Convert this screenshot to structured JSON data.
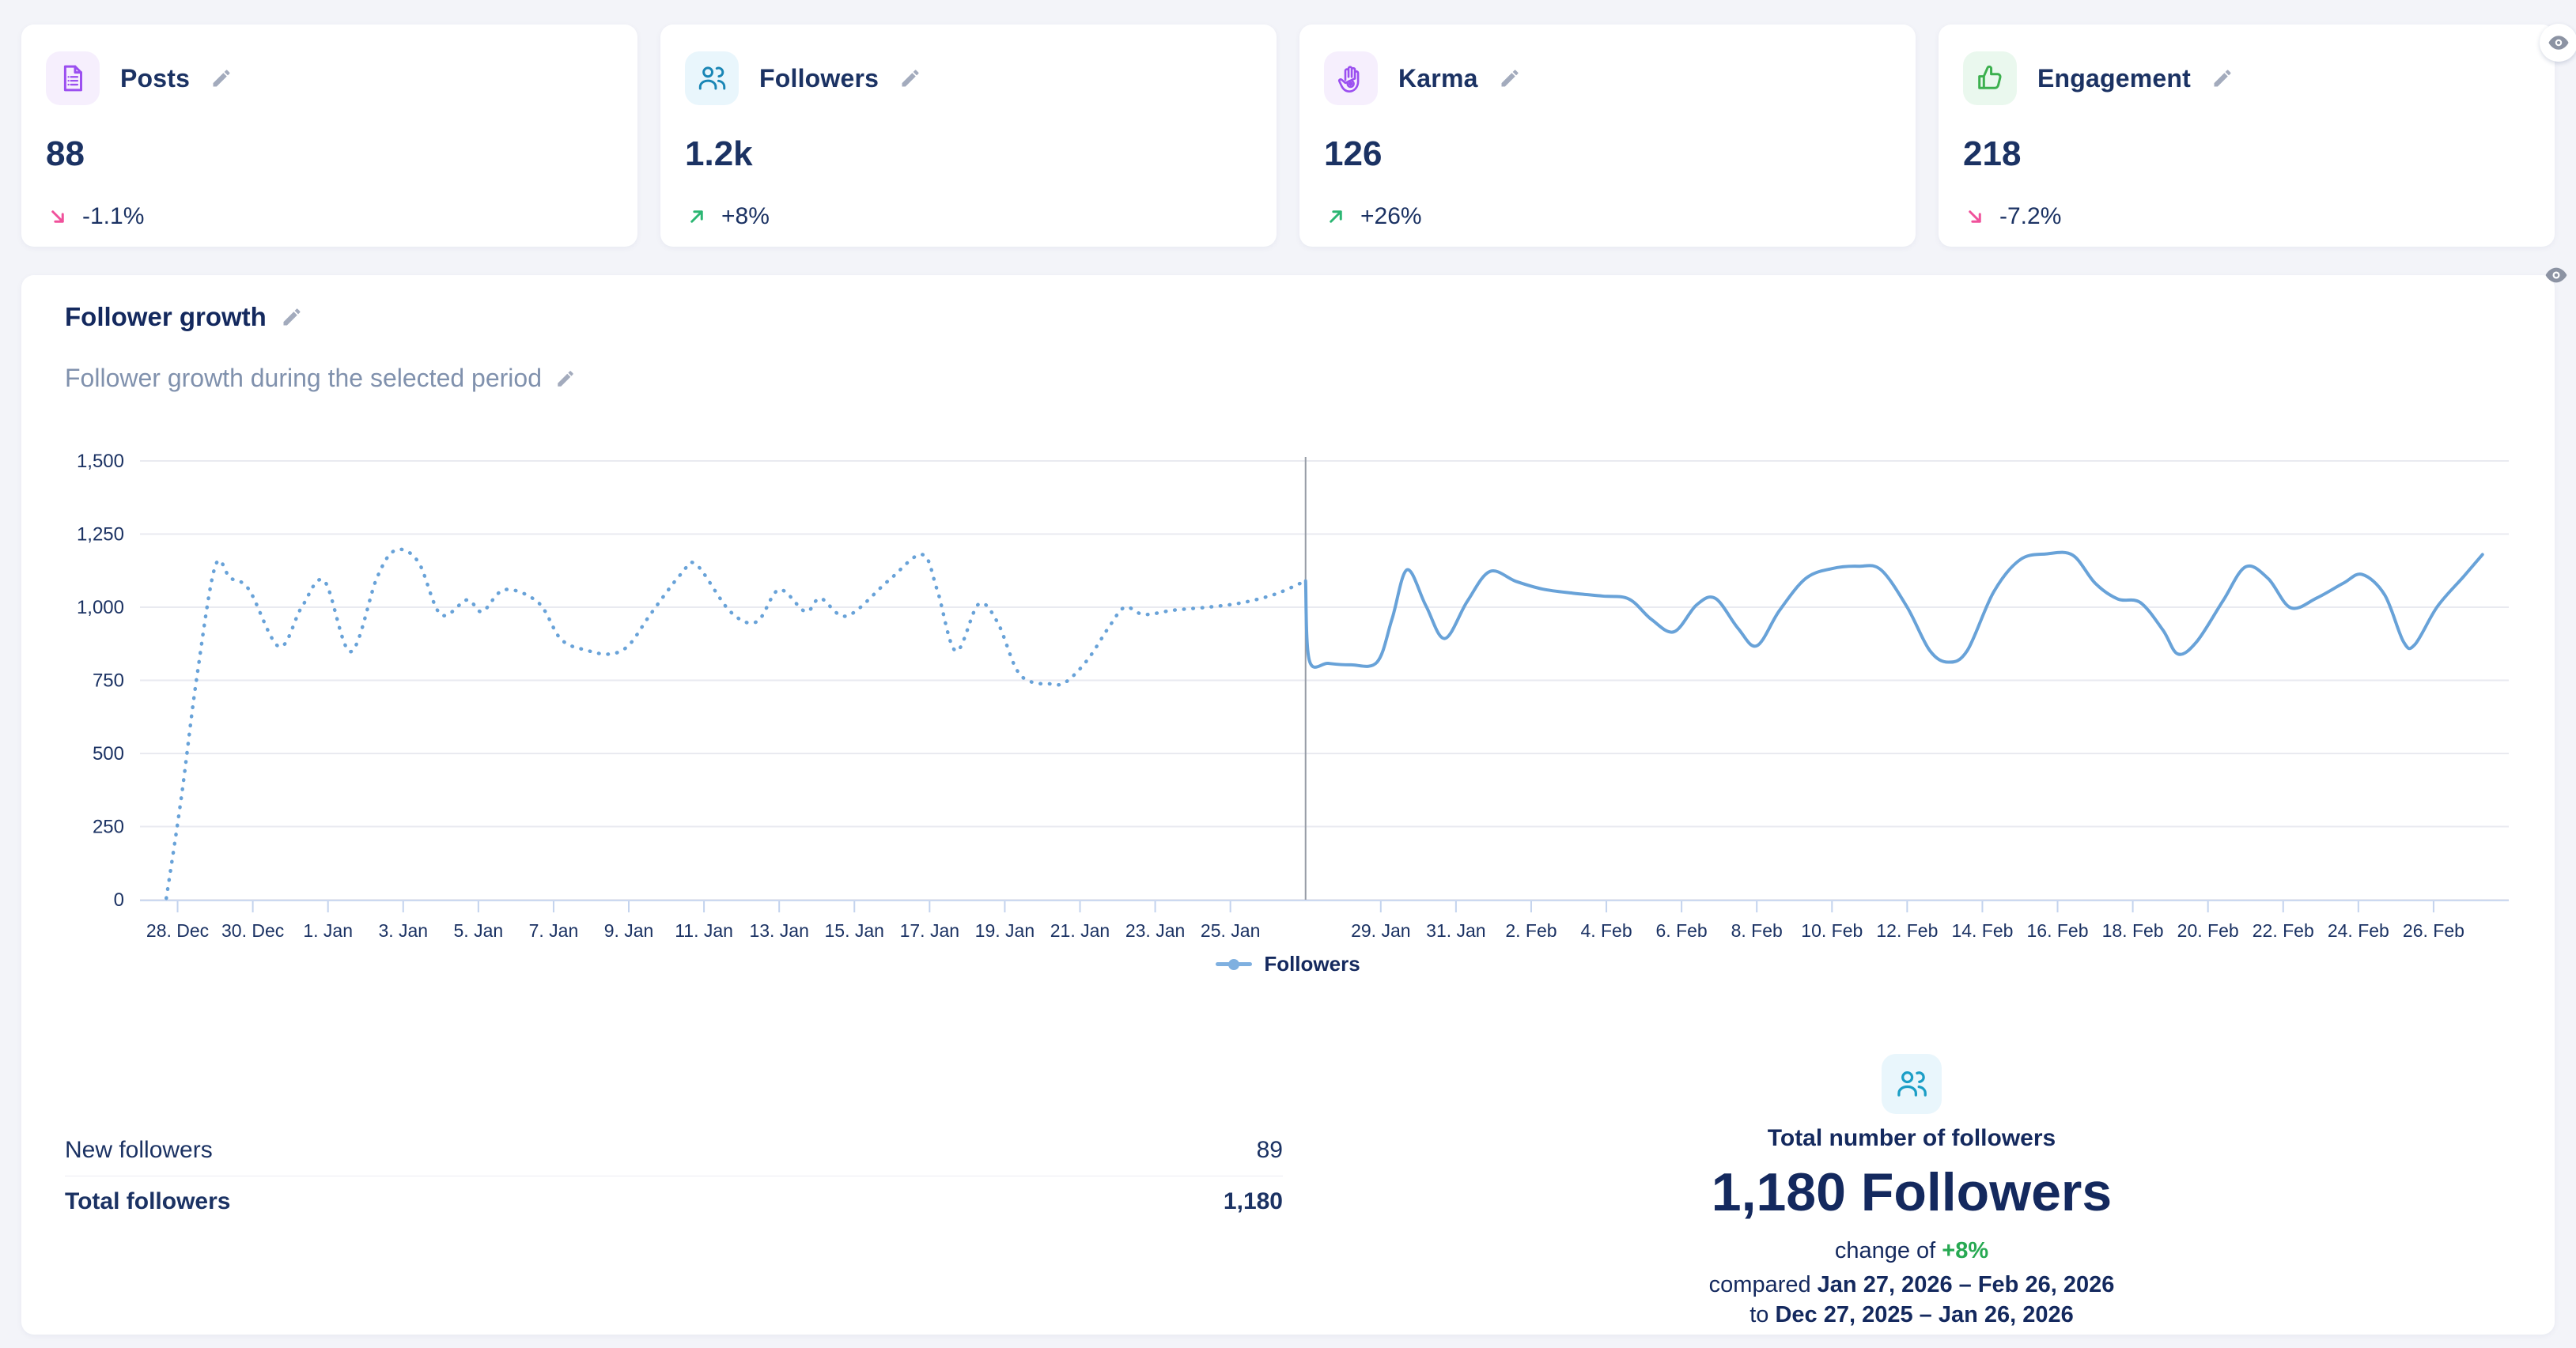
{
  "page_bg": "#f3f4f9",
  "stat_cards": [
    {
      "id": "posts",
      "label": "Posts",
      "value": "88",
      "change": "-1.1%",
      "direction": "down",
      "icon": "posts-icon",
      "icon_color": "#9b4ff0",
      "icon_bg": "#f6effd"
    },
    {
      "id": "followers",
      "label": "Followers",
      "value": "1.2k",
      "change": "+8%",
      "direction": "up",
      "icon": "followers-icon",
      "icon_color": "#1a86b5",
      "icon_bg": "#e9f6fc"
    },
    {
      "id": "karma",
      "label": "Karma",
      "value": "126",
      "change": "+26%",
      "direction": "up",
      "icon": "karma-icon",
      "icon_color": "#9b4ff0",
      "icon_bg": "#f6effd"
    },
    {
      "id": "engagement",
      "label": "Engagement",
      "value": "218",
      "change": "-7.2%",
      "direction": "down",
      "icon": "engagement-icon",
      "icon_color": "#3cb04e",
      "icon_bg": "#eaf8ee"
    }
  ],
  "trend_colors": {
    "up_arrow": "#2cb673",
    "down_arrow": "#f0519b",
    "change_text": "#1b3263"
  },
  "chart_card": {
    "title": "Follower growth",
    "subtitle": "Follower growth during the selected period"
  },
  "chart_data": {
    "type": "line",
    "title": "Follower growth",
    "xlabel": "",
    "ylabel": "",
    "ylim": [
      0,
      1500
    ],
    "grid": true,
    "legend_position": "bottom-center",
    "legend": [
      {
        "label": "Followers",
        "color": "#7fb0e0"
      }
    ],
    "colors": {
      "line": "#68a2d8",
      "grid": "#e9eaf0",
      "axis": "#ccd9f0",
      "tick": "#c3d3ee",
      "divider": "#969ca6",
      "label": "#1b3263"
    },
    "yticks": [
      {
        "v": 0,
        "label": "0"
      },
      {
        "v": 250,
        "label": "250"
      },
      {
        "v": 500,
        "label": "500"
      },
      {
        "v": 750,
        "label": "750"
      },
      {
        "v": 1000,
        "label": "1,000"
      },
      {
        "v": 1250,
        "label": "1,250"
      },
      {
        "v": 1500,
        "label": "1,500"
      }
    ],
    "x_domain_days": [
      0,
      63
    ],
    "divider_day": 31,
    "xticks": [
      {
        "day": 1,
        "label": "28. Dec"
      },
      {
        "day": 3,
        "label": "30. Dec"
      },
      {
        "day": 5,
        "label": "1. Jan"
      },
      {
        "day": 7,
        "label": "3. Jan"
      },
      {
        "day": 9,
        "label": "5. Jan"
      },
      {
        "day": 11,
        "label": "7. Jan"
      },
      {
        "day": 13,
        "label": "9. Jan"
      },
      {
        "day": 15,
        "label": "11. Jan"
      },
      {
        "day": 17,
        "label": "13. Jan"
      },
      {
        "day": 19,
        "label": "15. Jan"
      },
      {
        "day": 21,
        "label": "17. Jan"
      },
      {
        "day": 23,
        "label": "19. Jan"
      },
      {
        "day": 25,
        "label": "21. Jan"
      },
      {
        "day": 27,
        "label": "23. Jan"
      },
      {
        "day": 29,
        "label": "25. Jan"
      },
      {
        "day": 33,
        "label": "29. Jan"
      },
      {
        "day": 35,
        "label": "31. Jan"
      },
      {
        "day": 37,
        "label": "2. Feb"
      },
      {
        "day": 39,
        "label": "4. Feb"
      },
      {
        "day": 41,
        "label": "6. Feb"
      },
      {
        "day": 43,
        "label": "8. Feb"
      },
      {
        "day": 45,
        "label": "10. Feb"
      },
      {
        "day": 47,
        "label": "12. Feb"
      },
      {
        "day": 49,
        "label": "14. Feb"
      },
      {
        "day": 51,
        "label": "16. Feb"
      },
      {
        "day": 53,
        "label": "18. Feb"
      },
      {
        "day": 55,
        "label": "20. Feb"
      },
      {
        "day": 57,
        "label": "22. Feb"
      },
      {
        "day": 59,
        "label": "24. Feb"
      },
      {
        "day": 61,
        "label": "26. Feb"
      }
    ],
    "series": [
      {
        "name": "Followers (previous period, dotted)",
        "style": "dotted",
        "points": [
          [
            0.7,
            5
          ],
          [
            1.1,
            350
          ],
          [
            1.5,
            750
          ],
          [
            2,
            1140
          ],
          [
            2.4,
            1100
          ],
          [
            2.9,
            1060
          ],
          [
            3.7,
            865
          ],
          [
            4.3,
            1000
          ],
          [
            4.9,
            1090
          ],
          [
            5.6,
            848
          ],
          [
            6.3,
            1100
          ],
          [
            6.8,
            1195
          ],
          [
            7.4,
            1155
          ],
          [
            8,
            975
          ],
          [
            8.7,
            1025
          ],
          [
            9.1,
            985
          ],
          [
            9.7,
            1060
          ],
          [
            10.6,
            1015
          ],
          [
            11.2,
            890
          ],
          [
            11.9,
            852
          ],
          [
            12.5,
            840
          ],
          [
            13,
            870
          ],
          [
            13.6,
            980
          ],
          [
            14.4,
            1115
          ],
          [
            14.8,
            1145
          ],
          [
            15.7,
            985
          ],
          [
            16.4,
            950
          ],
          [
            17,
            1060
          ],
          [
            17.7,
            985
          ],
          [
            18.1,
            1030
          ],
          [
            18.8,
            970
          ],
          [
            19.9,
            1090
          ],
          [
            20.8,
            1180
          ],
          [
            21.2,
            1060
          ],
          [
            21.7,
            850
          ],
          [
            22.3,
            1010
          ],
          [
            22.8,
            950
          ],
          [
            23.3,
            790
          ],
          [
            23.7,
            745
          ],
          [
            24.2,
            738
          ],
          [
            24.6,
            742
          ],
          [
            25.2,
            820
          ],
          [
            25.8,
            938
          ],
          [
            26.2,
            1000
          ],
          [
            26.7,
            975
          ],
          [
            27.5,
            990
          ],
          [
            28.4,
            1000
          ],
          [
            29.3,
            1015
          ],
          [
            30.2,
            1045
          ],
          [
            31,
            1090
          ]
        ]
      },
      {
        "name": "Followers (selected period, solid)",
        "style": "solid",
        "points": [
          [
            31,
            1090
          ],
          [
            31.1,
            818
          ],
          [
            31.6,
            808
          ],
          [
            32.2,
            803
          ],
          [
            32.9,
            812
          ],
          [
            33.3,
            960
          ],
          [
            33.7,
            1128
          ],
          [
            34.2,
            1005
          ],
          [
            34.7,
            893
          ],
          [
            35.3,
            1020
          ],
          [
            35.9,
            1122
          ],
          [
            36.6,
            1088
          ],
          [
            37.3,
            1062
          ],
          [
            38.1,
            1048
          ],
          [
            38.9,
            1038
          ],
          [
            39.6,
            1028
          ],
          [
            40.2,
            958
          ],
          [
            40.8,
            916
          ],
          [
            41.4,
            1008
          ],
          [
            41.9,
            1030
          ],
          [
            42.5,
            928
          ],
          [
            43,
            868
          ],
          [
            43.6,
            988
          ],
          [
            44.3,
            1098
          ],
          [
            45,
            1132
          ],
          [
            45.7,
            1140
          ],
          [
            46.3,
            1128
          ],
          [
            47,
            1000
          ],
          [
            47.6,
            852
          ],
          [
            48.1,
            812
          ],
          [
            48.6,
            852
          ],
          [
            49.3,
            1052
          ],
          [
            50,
            1162
          ],
          [
            50.7,
            1182
          ],
          [
            51.4,
            1178
          ],
          [
            52,
            1082
          ],
          [
            52.6,
            1028
          ],
          [
            53.2,
            1016
          ],
          [
            53.8,
            922
          ],
          [
            54.2,
            840
          ],
          [
            54.7,
            882
          ],
          [
            55.4,
            1022
          ],
          [
            56,
            1138
          ],
          [
            56.6,
            1098
          ],
          [
            57.2,
            998
          ],
          [
            57.9,
            1032
          ],
          [
            58.6,
            1082
          ],
          [
            59.1,
            1112
          ],
          [
            59.7,
            1042
          ],
          [
            60.2,
            882
          ],
          [
            60.5,
            872
          ],
          [
            61.1,
            1002
          ],
          [
            61.8,
            1105
          ],
          [
            62.3,
            1180
          ]
        ]
      }
    ]
  },
  "table": {
    "rows": [
      {
        "label": "New followers",
        "value": "89"
      },
      {
        "label": "Total followers",
        "value": "1,180"
      }
    ]
  },
  "summary": {
    "icon": "followers-icon",
    "heading": "Total number of followers",
    "big": "1,180 Followers",
    "change_prefix": "change of ",
    "change_value": "+8%",
    "change_color": "#27a952",
    "line2_prefix": "compared ",
    "line2_bold": "Jan 27, 2026 – Feb 26, 2026",
    "line3_prefix": "to ",
    "line3_bold": "Dec 27, 2025 – Jan 26, 2026"
  }
}
